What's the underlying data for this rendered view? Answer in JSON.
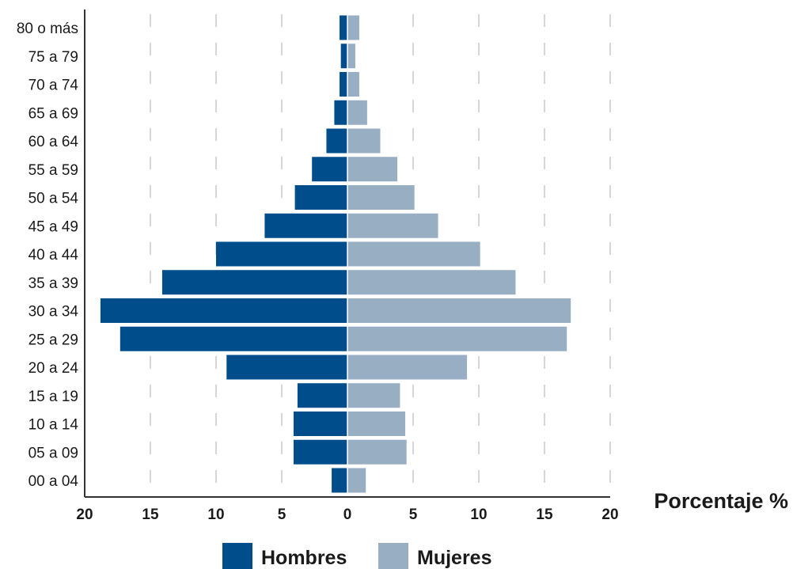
{
  "chart_data": {
    "type": "bar",
    "orientation": "horizontal-diverging",
    "categories": [
      "80 o más",
      "75 a 79",
      "70 a 74",
      "65 a 69",
      "60 a 64",
      "55 a 59",
      "50 a 54",
      "45 a 49",
      "40 a 44",
      "35 a 39",
      "30 a 34",
      "25 a 29",
      "20 a 24",
      "15 a 19",
      "10 a 14",
      "05 a 09",
      "00 a 04"
    ],
    "series": [
      {
        "name": "Hombres",
        "side": "left",
        "color": "#004d8c",
        "values": [
          0.6,
          0.5,
          0.6,
          1.0,
          1.6,
          2.7,
          4.0,
          6.3,
          10.0,
          14.1,
          18.8,
          17.3,
          9.2,
          3.8,
          4.1,
          4.1,
          1.2
        ]
      },
      {
        "name": "Mujeres",
        "side": "right",
        "color": "#97aec3",
        "values": [
          0.9,
          0.6,
          0.9,
          1.5,
          2.5,
          3.8,
          5.1,
          6.9,
          10.1,
          12.8,
          17.0,
          16.7,
          9.1,
          4.0,
          4.4,
          4.5,
          1.4
        ]
      }
    ],
    "xlim": [
      -20,
      20
    ],
    "xticks": [
      20,
      15,
      10,
      5,
      0,
      5,
      10,
      15,
      20
    ],
    "xlabel": "Porcentaje %",
    "ylabel": "",
    "title": "",
    "grid": "vertical dashed",
    "legend": "bottom-center"
  }
}
